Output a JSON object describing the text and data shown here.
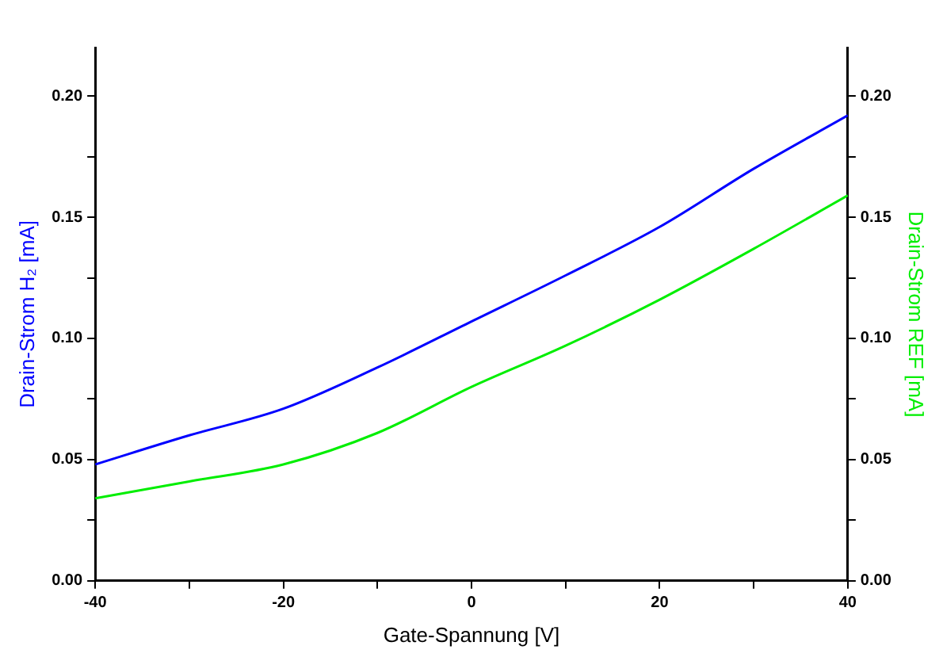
{
  "chart_data": {
    "type": "line",
    "xlabel": "Gate-Spannung [V]",
    "ylabel": "Drain-Strom H₂ [mA]",
    "y2label": "Drain-Strom REF [mA]",
    "x": [
      -40,
      -30,
      -20,
      -10,
      0,
      10,
      20,
      30,
      40
    ],
    "series": [
      {
        "color": "#0000ff",
        "values": [
          0.048,
          0.06,
          0.071,
          0.088,
          0.107,
          0.126,
          0.146,
          0.17,
          0.192
        ]
      },
      {
        "color": "#00ee00",
        "axis": "y2",
        "values": [
          0.034,
          0.041,
          0.048,
          0.061,
          0.08,
          0.097,
          0.116,
          0.137,
          0.159
        ]
      }
    ],
    "xlim": [
      -40,
      40
    ],
    "xticks": [
      -40,
      {
        "value": -30,
        "label": null
      },
      -20,
      {
        "value": -10,
        "label": null
      },
      0,
      {
        "value": 10,
        "label": null
      },
      20,
      {
        "value": 30,
        "label": null
      },
      40
    ],
    "ylim": [
      0,
      0.22
    ],
    "yticks": [
      {
        "value": 0,
        "label": "0.00"
      },
      {
        "value": 0.025,
        "label": null
      },
      {
        "value": 0.05,
        "label": "0.05"
      },
      {
        "value": 0.075,
        "label": null
      },
      {
        "value": 0.1,
        "label": "0.10"
      },
      {
        "value": 0.125,
        "label": null
      },
      {
        "value": 0.15,
        "label": "0.15"
      },
      {
        "value": 0.175,
        "label": null
      },
      {
        "value": 0.2,
        "label": "0.20"
      }
    ],
    "y2lim": [
      0,
      0.22
    ],
    "y2ticks": [
      {
        "value": 0,
        "label": "0.00"
      },
      {
        "value": 0.025,
        "label": null
      },
      {
        "value": 0.05,
        "label": "0.05"
      },
      {
        "value": 0.075,
        "label": null
      },
      {
        "value": 0.1,
        "label": "0.10"
      },
      {
        "value": 0.125,
        "label": null
      },
      {
        "value": 0.15,
        "label": "0.15"
      },
      {
        "value": 0.175,
        "label": null
      },
      {
        "value": 0.2,
        "label": "0.20"
      }
    ],
    "grid": false,
    "legend": false,
    "marker": "none",
    "line_style": "solid"
  }
}
